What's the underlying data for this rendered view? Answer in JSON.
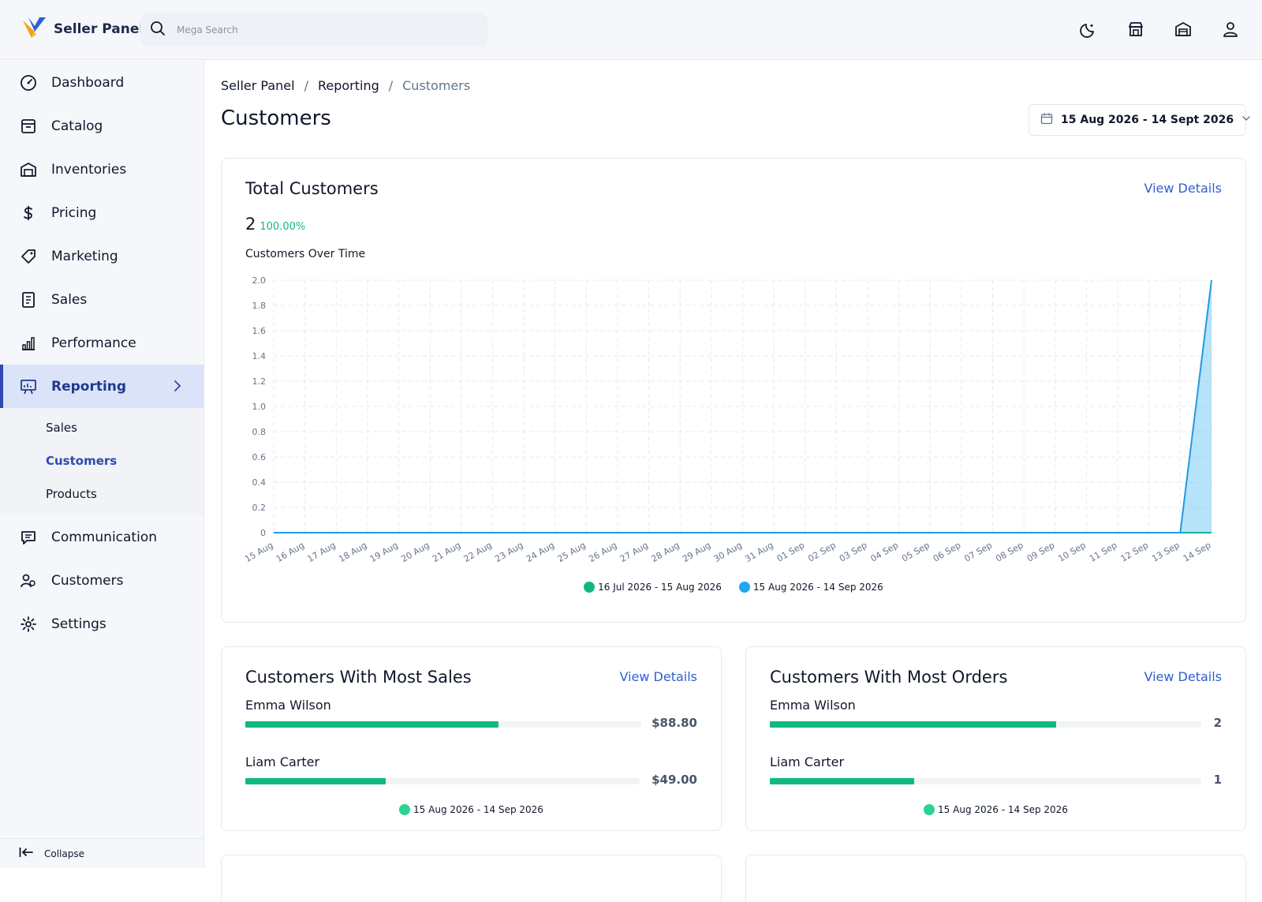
{
  "app": {
    "brand": "Seller Panel"
  },
  "search": {
    "placeholder": "Mega Search"
  },
  "top_icons": [
    "moon-icon",
    "store-icon",
    "warehouse-icon",
    "user-icon"
  ],
  "sidebar": {
    "items": [
      {
        "label": "Dashboard",
        "icon": "dashboard-icon"
      },
      {
        "label": "Catalog",
        "icon": "catalog-icon"
      },
      {
        "label": "Inventories",
        "icon": "warehouse-icon"
      },
      {
        "label": "Pricing",
        "icon": "dollar-icon"
      },
      {
        "label": "Marketing",
        "icon": "tag-icon"
      },
      {
        "label": "Sales",
        "icon": "receipt-icon"
      },
      {
        "label": "Performance",
        "icon": "bar-chart-icon"
      },
      {
        "label": "Reporting",
        "icon": "presentation-icon",
        "active": true
      }
    ],
    "subitems": [
      {
        "label": "Sales"
      },
      {
        "label": "Customers",
        "active": true
      },
      {
        "label": "Products"
      }
    ],
    "items_after": [
      {
        "label": "Communication",
        "icon": "chat-icon"
      },
      {
        "label": "Customers",
        "icon": "users-icon"
      },
      {
        "label": "Settings",
        "icon": "gear-icon"
      }
    ],
    "collapse_label": "Collapse"
  },
  "breadcrumb": [
    "Seller Panel",
    "Reporting",
    "Customers"
  ],
  "page": {
    "title": "Customers",
    "date_range": "15 Aug 2026 - 14 Sept 2026"
  },
  "total_card": {
    "title": "Total Customers",
    "view_label": "View Details",
    "value": "2",
    "change": "100.00%",
    "chart_title": "Customers Over Time"
  },
  "chart_data": {
    "type": "area",
    "title": "Customers Over Time",
    "x": [
      "15 Aug",
      "16 Aug",
      "17 Aug",
      "18 Aug",
      "19 Aug",
      "20 Aug",
      "21 Aug",
      "22 Aug",
      "23 Aug",
      "24 Aug",
      "25 Aug",
      "26 Aug",
      "27 Aug",
      "28 Aug",
      "29 Aug",
      "30 Aug",
      "31 Aug",
      "01 Sep",
      "02 Sep",
      "03 Sep",
      "04 Sep",
      "05 Sep",
      "06 Sep",
      "07 Sep",
      "08 Sep",
      "09 Sep",
      "10 Sep",
      "11 Sep",
      "12 Sep",
      "13 Sep",
      "14 Sep"
    ],
    "yticks": [
      "0",
      "0.2",
      "0.4",
      "0.6",
      "0.8",
      "1.0",
      "1.2",
      "1.4",
      "1.6",
      "1.8",
      "2.0"
    ],
    "ylim": [
      0,
      2
    ],
    "grid": true,
    "series": [
      {
        "name": "16 Jul 2026 - 15 Aug 2026",
        "color": "#10b981",
        "values": [
          0,
          0,
          0,
          0,
          0,
          0,
          0,
          0,
          0,
          0,
          0,
          0,
          0,
          0,
          0,
          0,
          0,
          0,
          0,
          0,
          0,
          0,
          0,
          0,
          0,
          0,
          0,
          0,
          0,
          0,
          0
        ]
      },
      {
        "name": "15 Aug 2026 - 14 Sep 2026",
        "color": "#1e9ae8",
        "values": [
          0,
          0,
          0,
          0,
          0,
          0,
          0,
          0,
          0,
          0,
          0,
          0,
          0,
          0,
          0,
          0,
          0,
          0,
          0,
          0,
          0,
          0,
          0,
          0,
          0,
          0,
          0,
          0,
          0,
          0,
          2
        ]
      }
    ],
    "legend_position": "bottom"
  },
  "sales_card": {
    "title": "Customers With Most Sales",
    "view_label": "View Details",
    "rows": [
      {
        "name": "Emma Wilson",
        "value": "$88.80",
        "fraction": 0.64
      },
      {
        "name": "Liam Carter",
        "value": "$49.00",
        "fraction": 0.355
      }
    ],
    "legend": "15 Aug 2026 - 14 Sep 2026"
  },
  "orders_card": {
    "title": "Customers With Most Orders",
    "view_label": "View Details",
    "rows": [
      {
        "name": "Emma Wilson",
        "value": "2",
        "fraction": 0.663
      },
      {
        "name": "Liam Carter",
        "value": "1",
        "fraction": 0.335
      }
    ],
    "legend": "15 Aug 2026 - 14 Sep 2026"
  },
  "colors": {
    "accent": "#2f49b0",
    "link": "#2f5fd0",
    "green": "#10b981",
    "blue": "#1e9ae8"
  }
}
